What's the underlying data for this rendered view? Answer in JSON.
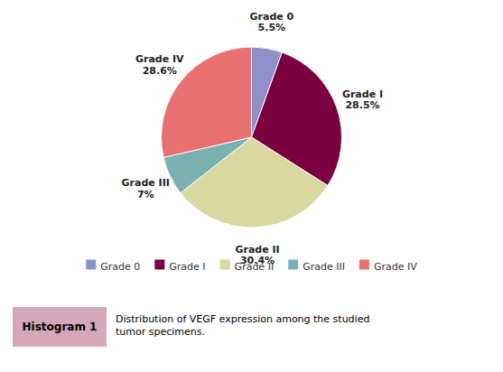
{
  "chart_data": {
    "type": "pie",
    "title": "Histogram 1",
    "subtitle": "Distribution of VEGF expression among the studied\ntumor specimens.",
    "categories": [
      "Grade 0",
      "Grade I",
      "Grade II",
      "Grade III",
      "Grade IV"
    ],
    "values": [
      5.5,
      28.5,
      30.4,
      7.0,
      28.6
    ],
    "value_labels": [
      "5.5%",
      "28.5%",
      "30.4%",
      "7%",
      "28.6%"
    ],
    "colors": [
      "#9090c8",
      "#7a0040",
      "#d8d8a0",
      "#7ab0b0",
      "#e87070"
    ],
    "data_labels": true,
    "legend": "bottom"
  }
}
